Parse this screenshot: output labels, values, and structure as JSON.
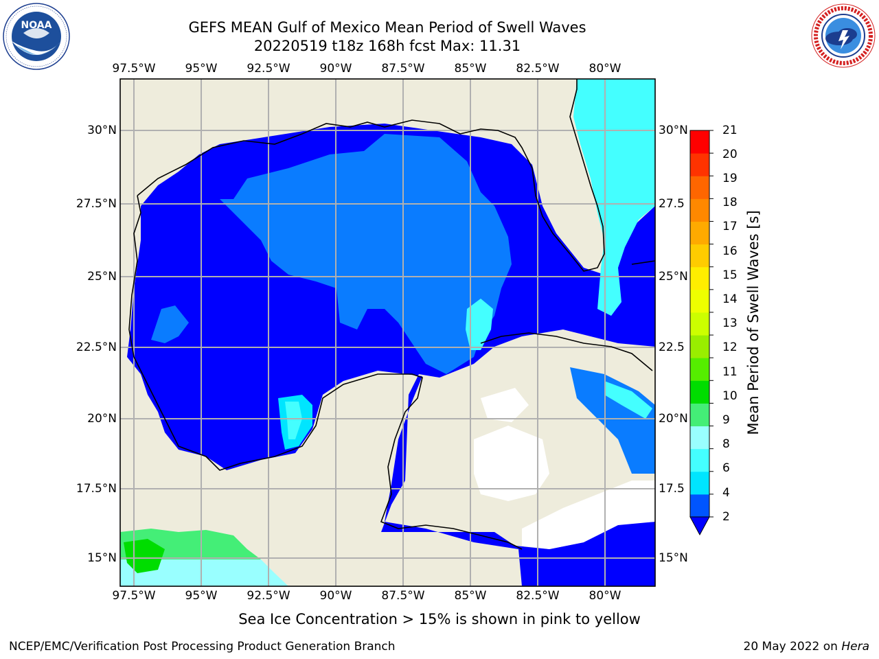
{
  "title_line1": "GEFS MEAN Gulf of Mexico Mean Period of Swell Waves",
  "title_line2": "20220519 t18z 168h fcst   Max: 11.31",
  "logos": {
    "left": {
      "icon": "noaa-logo",
      "text": "NOAA",
      "ring_text": "NATIONAL OCEANIC AND ATMOSPHERIC ADMINISTRATION · U.S. DEPARTMENT OF COMMERCE"
    },
    "right": {
      "icon": "nws-logo",
      "ring_text": "NATIONAL WEATHER SERVICE"
    }
  },
  "axes": {
    "lon_labels": [
      "97.5°W",
      "95°W",
      "92.5°W",
      "90°W",
      "87.5°W",
      "85°W",
      "82.5°W",
      "80°W"
    ],
    "lat_labels_left": [
      "30°N",
      "27.5°N",
      "25°N",
      "22.5°N",
      "20°N",
      "17.5°N",
      "15°N"
    ],
    "lat_labels_right": [
      "30°N",
      "27.5",
      "25°N",
      "22.5",
      "20°N",
      "17.5",
      "15°N"
    ]
  },
  "colorbar": {
    "label": "Mean Period of Swell Waves [s]",
    "ticks": [
      "21",
      "20",
      "19",
      "18",
      "17",
      "16",
      "15",
      "14",
      "13",
      "12",
      "11",
      "10",
      "9",
      "8",
      "6",
      "4",
      "2"
    ],
    "colors_bottom_to_top": [
      "#0055ff",
      "#00e5ff",
      "#44ffff",
      "#99ffff",
      "#44ee77",
      "#00dd00",
      "#55ee00",
      "#99ee00",
      "#ccff00",
      "#eeff00",
      "#ffee00",
      "#ffcc00",
      "#ffaa00",
      "#ff8800",
      "#ff6600",
      "#ff3300",
      "#ff0000"
    ],
    "extend_color": "#0000ff"
  },
  "field_colors": {
    "land": "#eeecdc",
    "period_lt2": "#0000ff",
    "period_2_4": "#0a7cff",
    "period_4_6": "#00e5ff",
    "period_6_8": "#44ffff",
    "period_8_9": "#99ffff",
    "period_9_10": "#44ee77",
    "period_10_11": "#00dd00"
  },
  "footnote": "Sea Ice Concentration > 15% is shown in pink to yellow",
  "credit_left": "NCEP/EMC/Verification Post Processing Product Generation Branch",
  "credit_right_prefix": "20 May 2022 on ",
  "credit_right_host": "Hera"
}
